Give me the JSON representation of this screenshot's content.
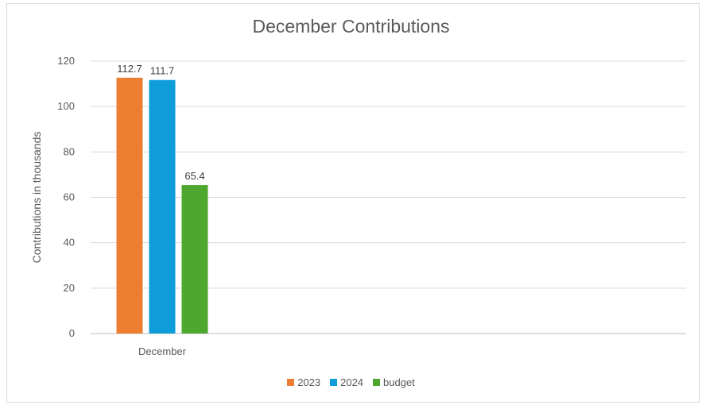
{
  "chart_data": {
    "type": "bar",
    "title": "December Contributions",
    "xlabel": "",
    "ylabel": "Contributions in thousands",
    "categories": [
      "December"
    ],
    "series": [
      {
        "name": "2023",
        "values": [
          112.7
        ],
        "color": "#ED7D31"
      },
      {
        "name": "2024",
        "values": [
          111.7
        ],
        "color": "#0E9DD9"
      },
      {
        "name": "budget",
        "values": [
          65.4
        ],
        "color": "#4EA72E"
      }
    ],
    "ylim": [
      0,
      120
    ],
    "yticks": [
      0,
      20,
      40,
      60,
      80,
      100,
      120
    ],
    "grid": true,
    "legend_position": "bottom"
  }
}
